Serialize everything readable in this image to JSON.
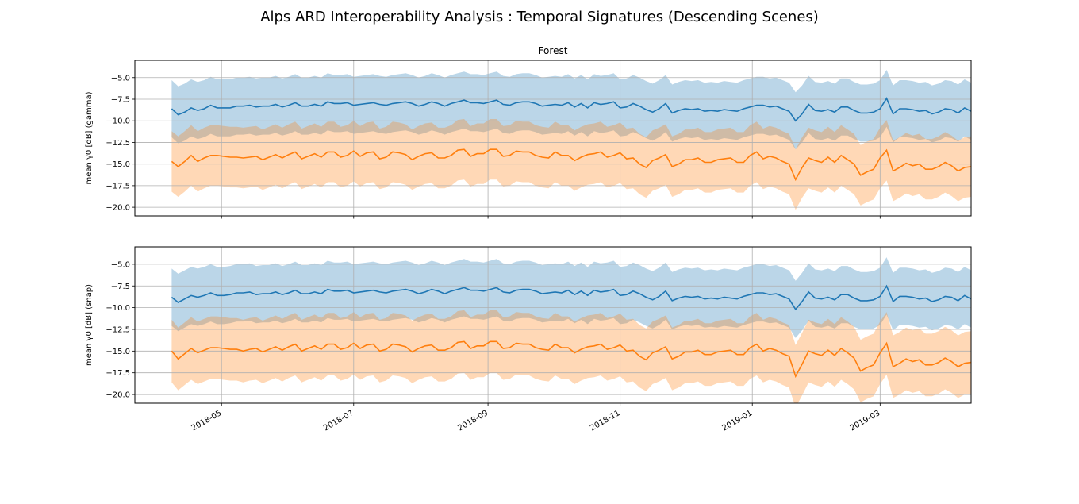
{
  "figure": {
    "title": "Alps ARD Interoperability Analysis : Temporal Signatures (Descending Scenes)"
  },
  "colors": {
    "series_blue": "#1f77b4",
    "series_orange": "#ff7f0e",
    "band_blue": "#1f77b4",
    "band_orange": "#ff7f0e",
    "grid": "#b0b0b0"
  },
  "chart_data": [
    {
      "type": "line",
      "title": "Forest",
      "ylabel": "mean γ0 [dB] (gamma)",
      "ylim": [
        -21.0,
        -3.0
      ],
      "xlim": [
        "2018-03-22",
        "2019-04-12"
      ],
      "yticks": [
        -5.0,
        -7.5,
        -10.0,
        -12.5,
        -15.0,
        -17.5,
        -20.0
      ],
      "ytick_labels": [
        "−5.0",
        "−7.5",
        "−10.0",
        "−12.5",
        "−15.0",
        "−17.5",
        "−20.0"
      ],
      "xticks": [
        "2018-05-01",
        "2018-07-01",
        "2018-09-01",
        "2018-11-01",
        "2019-01-01",
        "2019-03-01"
      ],
      "xtick_labels": [],
      "grid": true,
      "x_start": "2018-04-08",
      "x_step_days": 3,
      "series": [
        {
          "color": "blue",
          "band_halfwidth": 3.3,
          "values": [
            -8.6,
            -9.3,
            -9.0,
            -8.5,
            -8.8,
            -8.6,
            -8.2,
            -8.5,
            -8.5,
            -8.5,
            -8.3,
            -8.3,
            -8.2,
            -8.4,
            -8.3,
            -8.3,
            -8.1,
            -8.4,
            -8.2,
            -7.9,
            -8.3,
            -8.3,
            -8.1,
            -8.3,
            -7.8,
            -8.0,
            -8.0,
            -7.9,
            -8.2,
            -8.1,
            -8.0,
            -7.9,
            -8.1,
            -8.2,
            -8.0,
            -7.9,
            -7.8,
            -8.0,
            -8.3,
            -8.1,
            -7.8,
            -8.0,
            -8.3,
            -8.0,
            -7.8,
            -7.6,
            -7.9,
            -7.9,
            -8.0,
            -7.8,
            -7.6,
            -8.1,
            -8.2,
            -7.9,
            -7.8,
            -7.8,
            -8.0,
            -8.3,
            -8.2,
            -8.1,
            -8.2,
            -7.9,
            -8.4,
            -8.0,
            -8.5,
            -7.9,
            -8.1,
            -8.0,
            -7.8,
            -8.5,
            -8.4,
            -8.0,
            -8.3,
            -8.7,
            -9.0,
            -8.6,
            -8.0,
            -9.1,
            -8.8,
            -8.6,
            -8.7,
            -8.6,
            -8.9,
            -8.8,
            -8.9,
            -8.7,
            -8.8,
            -8.9,
            -8.6,
            -8.4,
            -8.2,
            -8.2,
            -8.4,
            -8.3,
            -8.6,
            -8.9,
            -10.0,
            -9.2,
            -8.1,
            -8.8,
            -8.9,
            -8.7,
            -9.0,
            -8.4,
            -8.4,
            -8.8,
            -9.1,
            -9.1,
            -9.0,
            -8.6,
            -7.4,
            -9.2,
            -8.6,
            -8.6,
            -8.7,
            -8.9,
            -8.8,
            -9.2,
            -9.0,
            -8.6,
            -8.7,
            -9.1,
            -8.5,
            -8.9,
            -8.7,
            -9.0,
            -8.7,
            -8.6,
            -8.4,
            -8.1,
            -9.2,
            -8.6,
            -8.2,
            -8.3,
            -8.0,
            -8.9,
            -8.5,
            -8.5,
            -8.4,
            -8.3,
            -8.2,
            -8.8,
            -9.0,
            -8.7,
            -8.7,
            -9.6,
            -8.6,
            -8.4,
            -8.6,
            -8.2
          ]
        },
        {
          "color": "orange",
          "band_halfwidth": 3.5,
          "values": [
            -14.7,
            -15.3,
            -14.7,
            -14.0,
            -14.7,
            -14.3,
            -14.0,
            -14.0,
            -14.1,
            -14.2,
            -14.2,
            -14.3,
            -14.2,
            -14.1,
            -14.5,
            -14.2,
            -13.9,
            -14.3,
            -13.9,
            -13.6,
            -14.4,
            -14.1,
            -13.8,
            -14.2,
            -13.6,
            -13.6,
            -14.2,
            -14.0,
            -13.5,
            -14.1,
            -13.7,
            -13.6,
            -14.4,
            -14.2,
            -13.6,
            -13.7,
            -13.9,
            -14.5,
            -14.1,
            -13.8,
            -13.7,
            -14.3,
            -14.3,
            -14.0,
            -13.4,
            -13.3,
            -14.1,
            -13.8,
            -13.8,
            -13.3,
            -13.3,
            -14.1,
            -14.0,
            -13.5,
            -13.6,
            -13.6,
            -14.0,
            -14.2,
            -14.3,
            -13.6,
            -14.0,
            -14.0,
            -14.6,
            -14.2,
            -13.9,
            -13.8,
            -13.6,
            -14.2,
            -14.0,
            -13.7,
            -14.4,
            -14.3,
            -15.0,
            -15.4,
            -14.6,
            -14.3,
            -13.9,
            -15.3,
            -15.0,
            -14.5,
            -14.5,
            -14.3,
            -14.8,
            -14.8,
            -14.5,
            -14.4,
            -14.3,
            -14.8,
            -14.8,
            -14.0,
            -13.6,
            -14.4,
            -14.1,
            -14.3,
            -14.7,
            -15.0,
            -16.8,
            -15.4,
            -14.3,
            -14.6,
            -14.8,
            -14.2,
            -14.8,
            -14.0,
            -14.5,
            -15.0,
            -16.3,
            -15.9,
            -15.6,
            -14.3,
            -13.4,
            -15.8,
            -15.4,
            -14.9,
            -15.2,
            -15.0,
            -15.6,
            -15.6,
            -15.3,
            -14.8,
            -15.2,
            -15.8,
            -15.4,
            -15.3,
            -15.2,
            -15.8,
            -15.6,
            -15.3,
            -14.9,
            -14.2,
            -15.8,
            -15.0,
            -14.2,
            -14.3,
            -14.2,
            -15.1,
            -14.7,
            -14.5,
            -14.4,
            -14.3,
            -14.4,
            -15.0,
            -15.9,
            -15.4,
            -15.3,
            -16.2,
            -15.3,
            -14.5,
            -14.4,
            -14.3
          ]
        }
      ]
    },
    {
      "type": "line",
      "title": "",
      "ylabel": "mean γ0 [dB] (snap)",
      "ylim": [
        -21.0,
        -3.0
      ],
      "xlim": [
        "2018-03-22",
        "2019-04-12"
      ],
      "yticks": [
        -5.0,
        -7.5,
        -10.0,
        -12.5,
        -15.0,
        -17.5,
        -20.0
      ],
      "ytick_labels": [
        "−5.0",
        "−7.5",
        "−10.0",
        "−12.5",
        "−15.0",
        "−17.5",
        "−20.0"
      ],
      "xticks": [
        "2018-05-01",
        "2018-07-01",
        "2018-09-01",
        "2018-11-01",
        "2019-01-01",
        "2019-03-01"
      ],
      "xtick_labels": [
        "2018-05",
        "2018-07",
        "2018-09",
        "2018-11",
        "2019-01",
        "2019-03"
      ],
      "grid": true,
      "x_start": "2018-04-08",
      "x_step_days": 3,
      "series": [
        {
          "color": "blue",
          "band_halfwidth": 3.3,
          "values": [
            -8.8,
            -9.4,
            -9.0,
            -8.6,
            -8.8,
            -8.6,
            -8.3,
            -8.6,
            -8.6,
            -8.5,
            -8.3,
            -8.3,
            -8.2,
            -8.5,
            -8.4,
            -8.4,
            -8.2,
            -8.5,
            -8.3,
            -8.0,
            -8.4,
            -8.4,
            -8.2,
            -8.4,
            -7.9,
            -8.1,
            -8.1,
            -8.0,
            -8.3,
            -8.2,
            -8.1,
            -8.0,
            -8.2,
            -8.3,
            -8.1,
            -8.0,
            -7.9,
            -8.1,
            -8.4,
            -8.2,
            -7.9,
            -8.1,
            -8.4,
            -8.1,
            -7.9,
            -7.7,
            -8.0,
            -8.0,
            -8.1,
            -7.9,
            -7.7,
            -8.2,
            -8.3,
            -8.0,
            -7.9,
            -7.9,
            -8.1,
            -8.4,
            -8.3,
            -8.2,
            -8.3,
            -8.0,
            -8.5,
            -8.1,
            -8.6,
            -8.0,
            -8.2,
            -8.1,
            -7.9,
            -8.6,
            -8.5,
            -8.1,
            -8.4,
            -8.8,
            -9.1,
            -8.7,
            -8.1,
            -9.2,
            -8.9,
            -8.7,
            -8.8,
            -8.7,
            -9.0,
            -8.9,
            -9.0,
            -8.8,
            -8.9,
            -9.0,
            -8.7,
            -8.5,
            -8.3,
            -8.3,
            -8.5,
            -8.4,
            -8.7,
            -9.0,
            -10.2,
            -9.3,
            -8.2,
            -8.9,
            -9.0,
            -8.8,
            -9.1,
            -8.5,
            -8.5,
            -8.9,
            -9.2,
            -9.2,
            -9.1,
            -8.7,
            -7.5,
            -9.3,
            -8.7,
            -8.7,
            -8.8,
            -9.0,
            -8.9,
            -9.3,
            -9.1,
            -8.7,
            -8.8,
            -9.2,
            -8.6,
            -9.0,
            -8.8,
            -9.1,
            -8.8,
            -8.7,
            -8.5,
            -8.2,
            -9.3,
            -8.7,
            -8.3,
            -8.4,
            -8.1,
            -9.0,
            -8.6,
            -8.6,
            -8.5,
            -8.4,
            -8.3,
            -8.9,
            -9.1,
            -8.8,
            -8.8,
            -9.7,
            -8.7,
            -8.5,
            -8.7,
            -8.3
          ]
        },
        {
          "color": "orange",
          "band_halfwidth": 3.6,
          "values": [
            -15.0,
            -15.9,
            -15.3,
            -14.7,
            -15.2,
            -14.9,
            -14.6,
            -14.6,
            -14.7,
            -14.8,
            -14.8,
            -15.0,
            -14.8,
            -14.7,
            -15.1,
            -14.8,
            -14.5,
            -14.9,
            -14.5,
            -14.2,
            -15.0,
            -14.7,
            -14.4,
            -14.8,
            -14.2,
            -14.2,
            -14.8,
            -14.6,
            -14.1,
            -14.7,
            -14.3,
            -14.2,
            -15.0,
            -14.8,
            -14.2,
            -14.3,
            -14.5,
            -15.1,
            -14.7,
            -14.4,
            -14.3,
            -14.9,
            -14.9,
            -14.6,
            -14.0,
            -13.9,
            -14.7,
            -14.4,
            -14.4,
            -13.9,
            -13.9,
            -14.7,
            -14.6,
            -14.1,
            -14.2,
            -14.2,
            -14.6,
            -14.8,
            -14.9,
            -14.2,
            -14.6,
            -14.6,
            -15.2,
            -14.8,
            -14.5,
            -14.4,
            -14.2,
            -14.8,
            -14.6,
            -14.3,
            -15.0,
            -14.9,
            -15.6,
            -16.0,
            -15.2,
            -14.9,
            -14.5,
            -15.9,
            -15.6,
            -15.1,
            -15.1,
            -14.9,
            -15.4,
            -15.4,
            -15.1,
            -15.0,
            -14.9,
            -15.4,
            -15.4,
            -14.6,
            -14.2,
            -15.0,
            -14.7,
            -14.9,
            -15.3,
            -15.6,
            -17.9,
            -16.5,
            -15.0,
            -15.3,
            -15.5,
            -14.9,
            -15.5,
            -14.7,
            -15.2,
            -15.8,
            -17.3,
            -16.9,
            -16.6,
            -15.2,
            -14.1,
            -16.8,
            -16.4,
            -15.9,
            -16.2,
            -16.0,
            -16.6,
            -16.6,
            -16.3,
            -15.8,
            -16.2,
            -16.8,
            -16.4,
            -16.3,
            -16.2,
            -16.8,
            -16.6,
            -16.3,
            -15.9,
            -15.2,
            -16.8,
            -16.0,
            -15.2,
            -15.3,
            -15.2,
            -16.1,
            -15.7,
            -15.5,
            -15.4,
            -15.3,
            -15.4,
            -16.0,
            -16.9,
            -16.4,
            -16.3,
            -17.3,
            -16.3,
            -15.5,
            -15.4,
            -15.3
          ]
        }
      ]
    }
  ]
}
